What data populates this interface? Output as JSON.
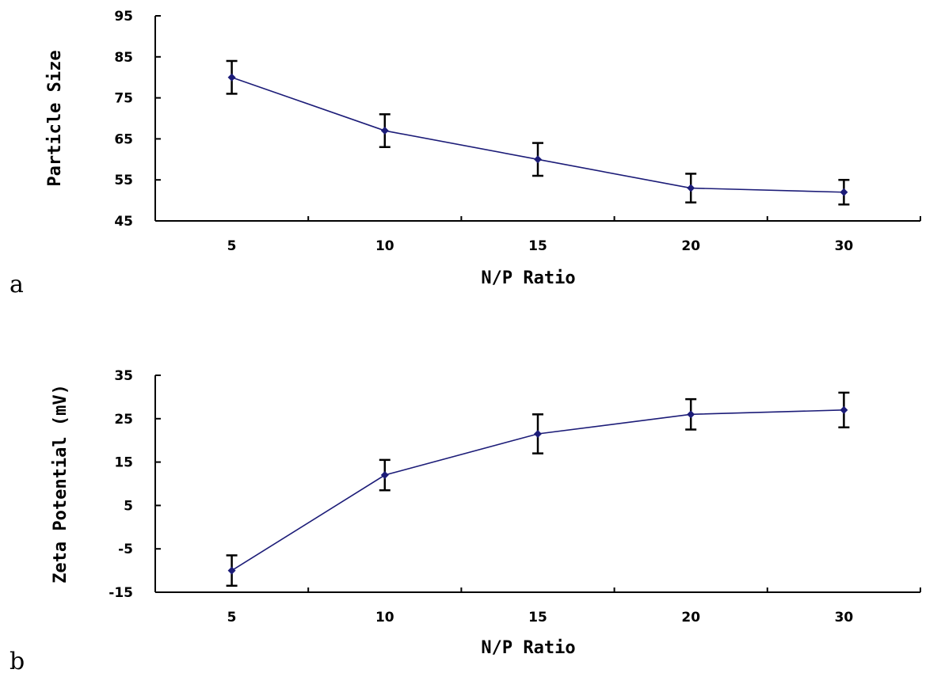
{
  "chart_data": [
    {
      "type": "line",
      "panel_label": "a",
      "categories": [
        "5",
        "10",
        "15",
        "20",
        "30"
      ],
      "series": [
        {
          "values": [
            80,
            67,
            60,
            53,
            52
          ],
          "errors": [
            4,
            4,
            4,
            3.5,
            3
          ],
          "color": "#1c1c78"
        }
      ],
      "xlabel": "N/P Ratio",
      "ylabel": "Particle Size",
      "ylim": [
        45,
        95
      ],
      "yticks": [
        "95",
        "85",
        "75",
        "65",
        "55",
        "45"
      ],
      "grid": false,
      "legend": "none"
    },
    {
      "type": "line",
      "panel_label": "b",
      "categories": [
        "5",
        "10",
        "15",
        "20",
        "30"
      ],
      "series": [
        {
          "values": [
            -10,
            12,
            21.5,
            26,
            27
          ],
          "errors": [
            3.5,
            3.5,
            4.5,
            3.5,
            4
          ],
          "color": "#1c1c78"
        }
      ],
      "xlabel": "N/P Ratio",
      "ylabel": "Zeta Potential (mV)",
      "ylim": [
        -15,
        35
      ],
      "yticks": [
        "35",
        "25",
        "15",
        "5",
        "-5",
        "-15"
      ],
      "grid": false,
      "legend": "none"
    }
  ]
}
